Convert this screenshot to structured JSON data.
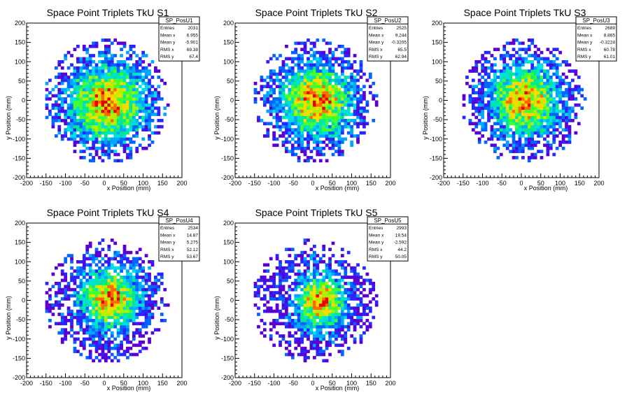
{
  "colors": {
    "background": "#ffffff",
    "palette": [
      "#5a00d4",
      "#2a24ff",
      "#0066ff",
      "#00a8ff",
      "#00e0e0",
      "#00e890",
      "#40ff30",
      "#b0f000",
      "#ffd800",
      "#ff6a00",
      "#ee0000"
    ]
  },
  "chart_data": [
    {
      "type": "heatmap",
      "title": "Space Point Triplets TkU S1",
      "xlabel": "x Position (mm)",
      "ylabel": "y Position (mm)",
      "xlim": [
        -200,
        200
      ],
      "ylim": [
        -200,
        200
      ],
      "xticks": [
        "-200",
        "-150",
        "-100",
        "-50",
        "0",
        "50",
        "100",
        "150",
        "200"
      ],
      "yticks": [
        "-200",
        "-150",
        "-100",
        "-50",
        "0",
        "50",
        "100",
        "150",
        "200"
      ],
      "bin_width_mm": 8,
      "stats": {
        "name": "SP_PosU1",
        "rows": [
          {
            "label": "Entries",
            "value": "2031"
          },
          {
            "label": "Mean x",
            "value": "6.955"
          },
          {
            "label": "Mean y",
            "value": "-5.901"
          },
          {
            "label": "RMS x",
            "value": "69.38"
          },
          {
            "label": "RMS y",
            "value": "67.4"
          }
        ]
      },
      "distribution": {
        "mean_x": 6.955,
        "mean_y": -5.901,
        "rms_x": 69.38,
        "rms_y": 67.4,
        "radius": 160
      }
    },
    {
      "type": "heatmap",
      "title": "Space Point Triplets TkU S2",
      "xlabel": "x Position (mm)",
      "ylabel": "y Position (mm)",
      "xlim": [
        -200,
        200
      ],
      "ylim": [
        -200,
        200
      ],
      "xticks": [
        "-200",
        "-150",
        "-100",
        "-50",
        "0",
        "50",
        "100",
        "150",
        "200"
      ],
      "yticks": [
        "-200",
        "-150",
        "-100",
        "-50",
        "0",
        "50",
        "100",
        "150",
        "200"
      ],
      "bin_width_mm": 8,
      "stats": {
        "name": "SP_PosU2",
        "rows": [
          {
            "label": "Entries",
            "value": "2525"
          },
          {
            "label": "Mean x",
            "value": "9.244"
          },
          {
            "label": "Mean y",
            "value": "-0.3205"
          },
          {
            "label": "RMS x",
            "value": "65.5"
          },
          {
            "label": "RMS y",
            "value": "62.94"
          }
        ]
      },
      "distribution": {
        "mean_x": 9.244,
        "mean_y": -0.3205,
        "rms_x": 65.5,
        "rms_y": 62.94,
        "radius": 160
      }
    },
    {
      "type": "heatmap",
      "title": "Space Point Triplets TkU S3",
      "xlabel": "x Position (mm)",
      "ylabel": "y Position (mm)",
      "xlim": [
        -200,
        200
      ],
      "ylim": [
        -200,
        200
      ],
      "xticks": [
        "-200",
        "-150",
        "-100",
        "-50",
        "0",
        "50",
        "100",
        "150",
        "200"
      ],
      "yticks": [
        "-200",
        "-150",
        "-100",
        "-50",
        "0",
        "50",
        "100",
        "150",
        "200"
      ],
      "bin_width_mm": 8,
      "stats": {
        "name": "SP_PosU3",
        "rows": [
          {
            "label": "Entries",
            "value": "2689"
          },
          {
            "label": "Mean x",
            "value": "8.865"
          },
          {
            "label": "Mean y",
            "value": "-0.3224"
          },
          {
            "label": "RMS x",
            "value": "60.78"
          },
          {
            "label": "RMS y",
            "value": "61.01"
          }
        ]
      },
      "distribution": {
        "mean_x": 8.865,
        "mean_y": -0.3224,
        "rms_x": 60.78,
        "rms_y": 61.01,
        "radius": 160
      }
    },
    {
      "type": "heatmap",
      "title": "Space Point Triplets TkU S4",
      "xlabel": "x Position (mm)",
      "ylabel": "y Position (mm)",
      "xlim": [
        -200,
        200
      ],
      "ylim": [
        -200,
        200
      ],
      "xticks": [
        "-200",
        "-150",
        "-100",
        "-50",
        "0",
        "50",
        "100",
        "150",
        "200"
      ],
      "yticks": [
        "-200",
        "-150",
        "-100",
        "-50",
        "0",
        "50",
        "100",
        "150",
        "200"
      ],
      "bin_width_mm": 8,
      "stats": {
        "name": "SP_PosU4",
        "rows": [
          {
            "label": "Entries",
            "value": "2534"
          },
          {
            "label": "Mean x",
            "value": "14.87"
          },
          {
            "label": "Mean y",
            "value": "5.275"
          },
          {
            "label": "RMS x",
            "value": "52.12"
          },
          {
            "label": "RMS y",
            "value": "53.67"
          }
        ]
      },
      "distribution": {
        "mean_x": 14.87,
        "mean_y": 5.275,
        "rms_x": 52.12,
        "rms_y": 53.67,
        "radius": 160
      }
    },
    {
      "type": "heatmap",
      "title": "Space Point Triplets TkU S5",
      "xlabel": "x Position (mm)",
      "ylabel": "y Position (mm)",
      "xlim": [
        -200,
        200
      ],
      "ylim": [
        -200,
        200
      ],
      "xticks": [
        "-200",
        "-150",
        "-100",
        "-50",
        "0",
        "50",
        "100",
        "150",
        "200"
      ],
      "yticks": [
        "-200",
        "-150",
        "-100",
        "-50",
        "0",
        "50",
        "100",
        "150",
        "200"
      ],
      "bin_width_mm": 8,
      "stats": {
        "name": "SP_PosU5",
        "rows": [
          {
            "label": "Entries",
            "value": "2993"
          },
          {
            "label": "Mean x",
            "value": "19.54"
          },
          {
            "label": "Mean y",
            "value": "-2.592"
          },
          {
            "label": "RMS x",
            "value": "44.2"
          },
          {
            "label": "RMS y",
            "value": "50.05"
          }
        ]
      },
      "distribution": {
        "mean_x": 19.54,
        "mean_y": -2.592,
        "rms_x": 44.2,
        "rms_y": 50.05,
        "radius": 160
      }
    }
  ]
}
